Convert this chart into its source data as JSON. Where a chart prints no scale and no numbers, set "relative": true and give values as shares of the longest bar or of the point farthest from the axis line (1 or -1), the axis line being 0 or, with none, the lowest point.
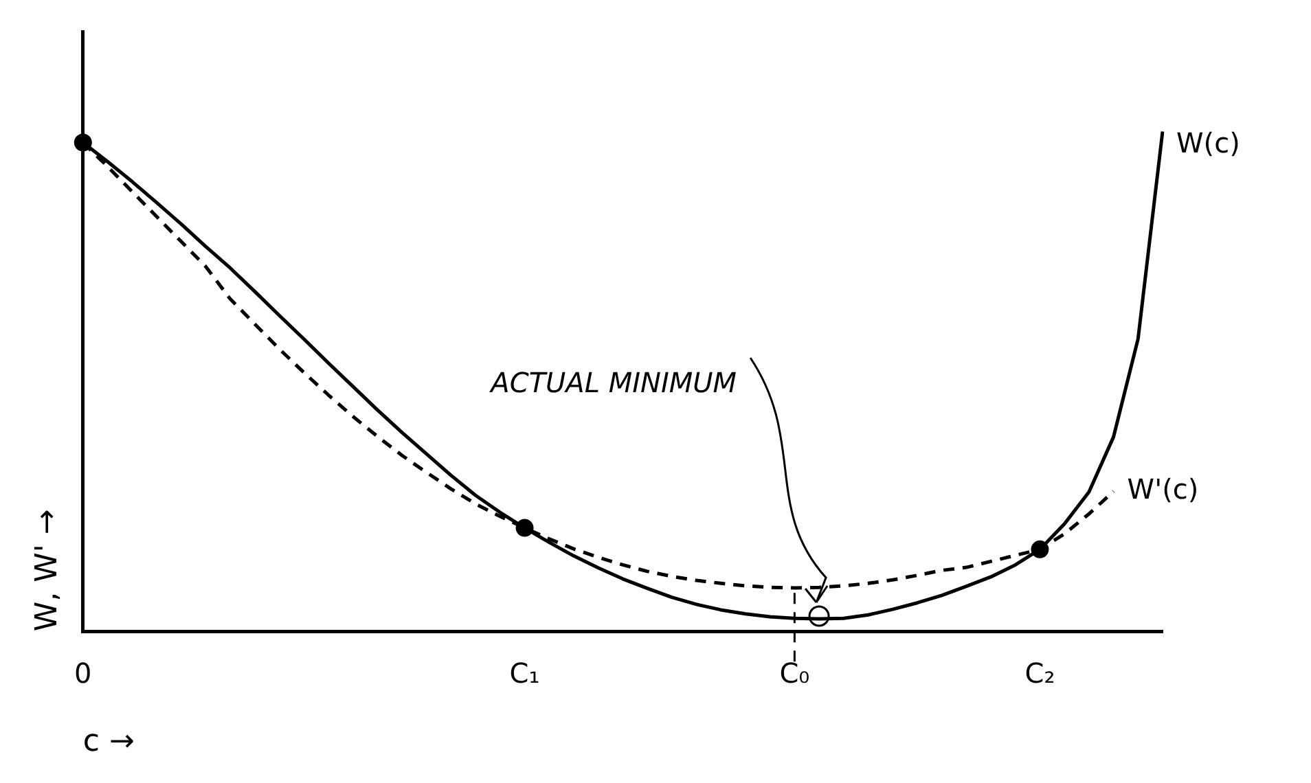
{
  "chart_data": {
    "type": "line",
    "relative": true,
    "xlabel": "c →",
    "ylabel": "W, W' →",
    "categories": [
      "0",
      null,
      null,
      null,
      null,
      null,
      null,
      null,
      null,
      null,
      null,
      null,
      null,
      null,
      null,
      null,
      null,
      null,
      "C₁",
      null,
      null,
      null,
      null,
      null,
      null,
      null,
      null,
      null,
      null,
      "C₀",
      null,
      null,
      null,
      null,
      null,
      null,
      null,
      null,
      null,
      "C₂",
      null,
      null,
      null,
      null,
      null
    ],
    "series": [
      {
        "name": "W(c)",
        "color": "#000000",
        "line_style": "solid",
        "marker": "none",
        "values": [
          0.978,
          0.94,
          0.9,
          0.858,
          0.815,
          0.77,
          0.727,
          0.68,
          0.632,
          0.585,
          0.537,
          0.49,
          0.443,
          0.398,
          0.355,
          0.312,
          0.272,
          0.238,
          0.207,
          0.178,
          0.151,
          0.127,
          0.105,
          0.086,
          0.068,
          0.054,
          0.043,
          0.035,
          0.029,
          0.026,
          0.025,
          0.026,
          0.033,
          0.044,
          0.057,
          0.072,
          0.09,
          0.109,
          0.133,
          0.164,
          0.215,
          0.279,
          0.389,
          0.585,
          1
        ]
      },
      {
        "name": "W'(c)",
        "color": "#000000",
        "line_style": "dashed",
        "marker": "none",
        "values": [
          0.978,
          0.93,
          0.88,
          0.83,
          0.78,
          0.73,
          0.665,
          0.615,
          0.565,
          0.518,
          0.473,
          0.43,
          0.39,
          0.352,
          0.318,
          0.285,
          0.255,
          0.23,
          0.207,
          0.185,
          0.165,
          0.148,
          0.133,
          0.12,
          0.11,
          0.102,
          0.096,
          0.091,
          0.088,
          0.087,
          0.088,
          0.091,
          0.096,
          0.103,
          0.112,
          0.122,
          0.128,
          0.14,
          0.152,
          0.164,
          0.195,
          0.235,
          0.28,
          null,
          null
        ]
      },
      {
        "type": "scatter",
        "color": "#000000",
        "marker": "circle",
        "x": [
          "0",
          "C₁",
          "C₂"
        ],
        "values": [
          0.978,
          0.207,
          0.164
        ]
      }
    ],
    "ref_lines": [
      {
        "axis": "x",
        "value": "C₀",
        "line_style": "dashed"
      }
    ],
    "annotations": [
      "ACTUAL MINIMUM"
    ],
    "grid": false,
    "legend": false
  }
}
